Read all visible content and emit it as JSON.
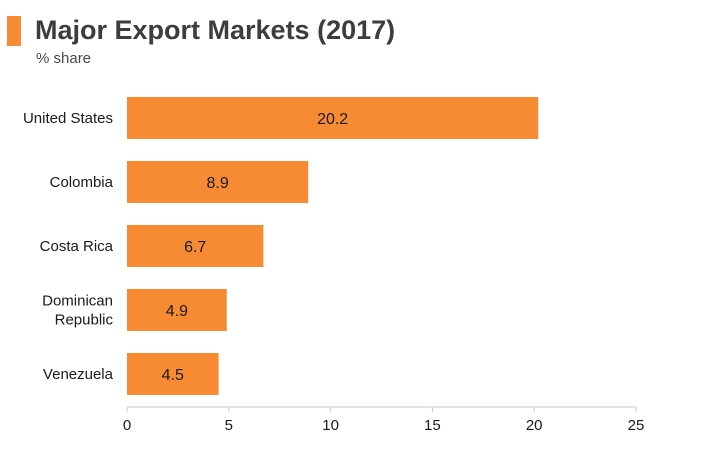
{
  "title": "Major Export Markets (2017)",
  "subtitle": "% share",
  "colors": {
    "bar": "#f68b33",
    "accent": "#f68b33",
    "axis": "#c8c8c8",
    "text": "#1a1a1a"
  },
  "chart_data": {
    "type": "bar",
    "orientation": "horizontal",
    "title": "Major Export Markets (2017)",
    "subtitle": "% share",
    "categories": [
      "United States",
      "Colombia",
      "Costa Rica",
      "Dominican Republic",
      "Venezuela"
    ],
    "category_lines": [
      [
        "United States"
      ],
      [
        "Colombia"
      ],
      [
        "Costa Rica"
      ],
      [
        "Dominican",
        "Republic"
      ],
      [
        "Venezuela"
      ]
    ],
    "values": [
      20.2,
      8.9,
      6.7,
      4.9,
      4.5
    ],
    "value_labels": [
      "20.2",
      "8.9",
      "6.7",
      "4.9",
      "4.5"
    ],
    "xlim": [
      0,
      25
    ],
    "xticks": [
      0,
      5,
      10,
      15,
      20,
      25
    ],
    "xtick_labels": [
      "0",
      "5",
      "10",
      "15",
      "20",
      "25"
    ],
    "grid": false,
    "legend": "none"
  }
}
